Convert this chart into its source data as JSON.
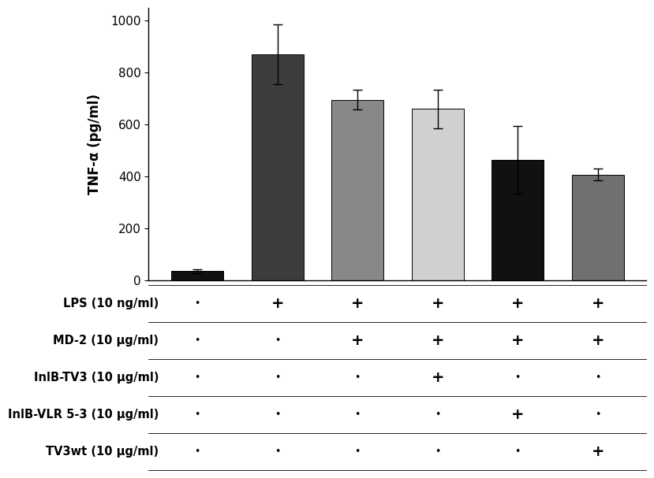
{
  "values": [
    35,
    870,
    695,
    660,
    465,
    408
  ],
  "errors": [
    8,
    115,
    38,
    75,
    130,
    22
  ],
  "colors": [
    "#111111",
    "#3d3d3d",
    "#888888",
    "#d0d0d0",
    "#111111",
    "#707070"
  ],
  "ylabel": "TNF-α (pg/ml)",
  "ylim": [
    0,
    1050
  ],
  "yticks": [
    0,
    200,
    400,
    600,
    800,
    1000
  ],
  "bar_width": 0.65,
  "table_labels": [
    "LPS (10 ng/ml)",
    "MD-2 (10 μg/ml)",
    "InlB-TV3 (10 μg/ml)",
    "InlB-VLR 5-3 (10 μg/ml)",
    "TV3wt (10 μg/ml)"
  ],
  "table_signs": [
    [
      "-",
      "+",
      "+",
      "+",
      "+",
      "+"
    ],
    [
      "-",
      "-",
      "+",
      "+",
      "+",
      "+"
    ],
    [
      "-",
      "-",
      "-",
      "+",
      "-",
      "-"
    ],
    [
      "-",
      "-",
      "-",
      "-",
      "+",
      "-"
    ],
    [
      "-",
      "-",
      "-",
      "-",
      "-",
      "+"
    ]
  ],
  "background_color": "#ffffff"
}
